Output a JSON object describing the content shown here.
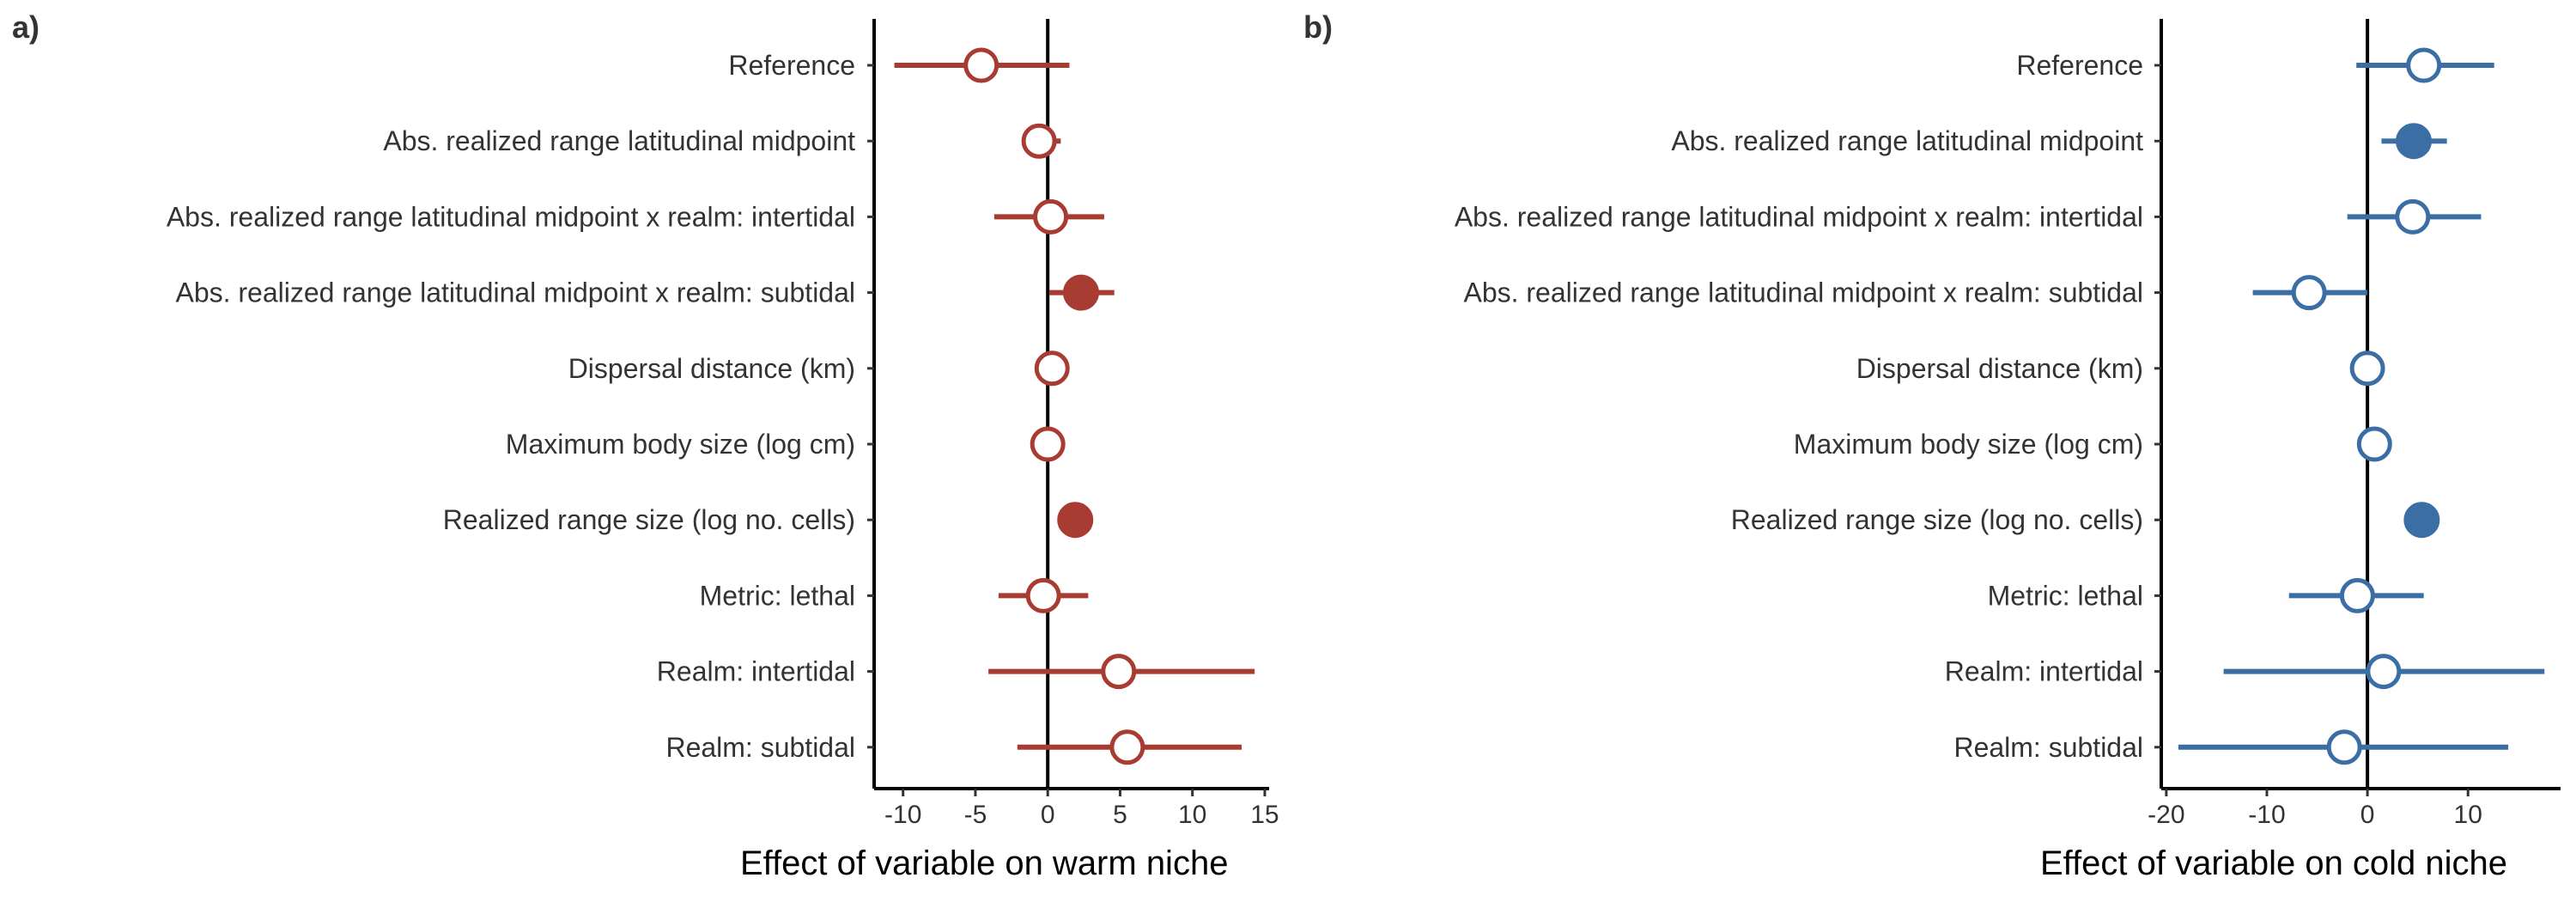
{
  "chart_data": [
    {
      "panel_label": "a)",
      "type": "forest",
      "xlabel": "Effect of variable on warm niche",
      "xticks": [
        -10,
        -5,
        0,
        5,
        10,
        15
      ],
      "xlim": [
        -12,
        15.3
      ],
      "reference_line": 0,
      "color": "#a83c32",
      "categories": [
        "Reference",
        "Abs. realized range latitudinal midpoint",
        "Abs. realized range latitudinal midpoint x realm: intertidal",
        "Abs. realized range latitudinal midpoint x realm: subtidal",
        "Dispersal distance (km)",
        "Maximum body size (log cm)",
        "Realized range size (log no. cells)",
        "Metric: lethal",
        "Realm: intertidal",
        "Realm: subtidal"
      ],
      "estimates": [
        -4.6,
        -0.6,
        0.2,
        2.3,
        0.3,
        0.0,
        1.9,
        -0.3,
        4.9,
        5.5
      ],
      "lower": [
        -10.6,
        -1.7,
        -3.7,
        0.1,
        0.3,
        0.0,
        1.9,
        -3.4,
        -4.1,
        -2.1
      ],
      "upper": [
        1.5,
        0.9,
        3.9,
        4.6,
        0.3,
        0.0,
        1.9,
        2.8,
        14.3,
        13.4
      ],
      "significant": [
        false,
        false,
        false,
        true,
        false,
        false,
        true,
        false,
        false,
        false
      ]
    },
    {
      "panel_label": "b)",
      "type": "forest",
      "xlabel": "Effect of variable on cold niche",
      "xticks": [
        -20,
        -10,
        0,
        10
      ],
      "xlim": [
        -20.5,
        19.2
      ],
      "reference_line": 0,
      "color": "#3a6ea5",
      "categories": [
        "Reference",
        "Abs. realized range latitudinal midpoint",
        "Abs. realized range latitudinal midpoint x realm: intertidal",
        "Abs. realized range latitudinal midpoint x realm: subtidal",
        "Dispersal distance (km)",
        "Maximum body size (log cm)",
        "Realized range size (log no. cells)",
        "Metric: lethal",
        "Realm: intertidal",
        "Realm: subtidal"
      ],
      "estimates": [
        5.6,
        4.6,
        4.5,
        -5.8,
        0.0,
        0.7,
        5.4,
        -1.0,
        1.6,
        -2.3
      ],
      "lower": [
        -1.1,
        1.4,
        -2.0,
        -11.4,
        0.0,
        0.7,
        5.4,
        -7.8,
        -14.3,
        -18.8
      ],
      "upper": [
        12.6,
        7.9,
        11.3,
        0.0,
        0.0,
        0.7,
        5.4,
        5.6,
        17.6,
        14.0
      ],
      "significant": [
        false,
        true,
        false,
        false,
        false,
        false,
        true,
        false,
        false,
        false
      ]
    }
  ]
}
